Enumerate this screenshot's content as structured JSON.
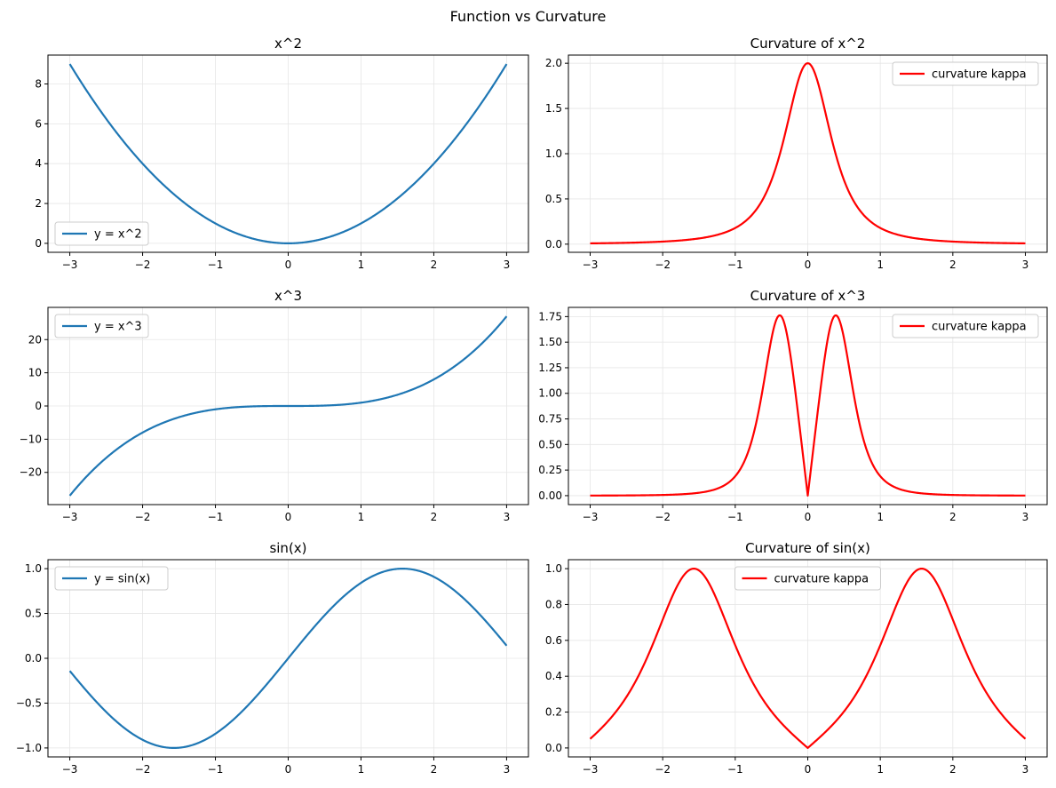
{
  "figure": {
    "title": "Function vs Curvature"
  },
  "colors": {
    "function_line": "#1f77b4",
    "curvature_line": "#ff0000",
    "grid": "#e6e6e6",
    "axes": "#000000"
  },
  "chart_data": [
    {
      "type": "line",
      "title": "x^2",
      "function": "x^2",
      "xlim": [
        -3.3,
        3.3
      ],
      "ylim": [
        -0.45,
        9.45
      ],
      "xticks": [
        -3,
        -2,
        -1,
        0,
        1,
        2,
        3
      ],
      "xtick_labels": [
        "−3",
        "−2",
        "−1",
        "0",
        "1",
        "2",
        "3"
      ],
      "yticks": [
        0,
        2,
        4,
        6,
        8
      ],
      "ytick_labels": [
        "0",
        "2",
        "4",
        "6",
        "8"
      ],
      "grid": true,
      "legend": "lower-left",
      "series": [
        {
          "name": "y = x^2",
          "color": "#1f77b4"
        }
      ],
      "x": [
        -3,
        -2.5,
        -2,
        -1.5,
        -1,
        -0.5,
        0,
        0.5,
        1,
        1.5,
        2,
        2.5,
        3
      ],
      "y": [
        9,
        6.25,
        4,
        2.25,
        1,
        0.25,
        0,
        0.25,
        1,
        2.25,
        4,
        6.25,
        9
      ]
    },
    {
      "type": "line",
      "title": "Curvature of x^2",
      "function": "kappa_x2",
      "xlim": [
        -3.3,
        3.3
      ],
      "ylim": [
        -0.09,
        2.09
      ],
      "xticks": [
        -3,
        -2,
        -1,
        0,
        1,
        2,
        3
      ],
      "xtick_labels": [
        "−3",
        "−2",
        "−1",
        "0",
        "1",
        "2",
        "3"
      ],
      "yticks": [
        0,
        0.5,
        1.0,
        1.5,
        2.0
      ],
      "ytick_labels": [
        "0.0",
        "0.5",
        "1.0",
        "1.5",
        "2.0"
      ],
      "grid": true,
      "legend": "upper-right",
      "series": [
        {
          "name": "curvature kappa",
          "color": "#ff0000"
        }
      ],
      "x": [
        -3,
        -2,
        -1,
        -0.5,
        0,
        0.5,
        1,
        2,
        3
      ],
      "y": [
        0.0119,
        0.0426,
        0.1789,
        0.7071,
        2.0,
        0.7071,
        0.1789,
        0.0426,
        0.0119
      ]
    },
    {
      "type": "line",
      "title": "x^3",
      "function": "x^3",
      "xlim": [
        -3.3,
        3.3
      ],
      "ylim": [
        -29.7,
        29.7
      ],
      "xticks": [
        -3,
        -2,
        -1,
        0,
        1,
        2,
        3
      ],
      "xtick_labels": [
        "−3",
        "−2",
        "−1",
        "0",
        "1",
        "2",
        "3"
      ],
      "yticks": [
        -20,
        -10,
        0,
        10,
        20
      ],
      "ytick_labels": [
        "−20",
        "−10",
        "0",
        "10",
        "20"
      ],
      "grid": true,
      "legend": "upper-left",
      "series": [
        {
          "name": "y = x^3",
          "color": "#1f77b4"
        }
      ],
      "x": [
        -3,
        -2,
        -1,
        0,
        1,
        2,
        3
      ],
      "y": [
        -27,
        -8,
        -1,
        0,
        1,
        8,
        27
      ]
    },
    {
      "type": "line",
      "title": "Curvature of x^3",
      "function": "kappa_x3",
      "xlim": [
        -3.3,
        3.3
      ],
      "ylim": [
        -0.0875,
        1.84
      ],
      "xticks": [
        -3,
        -2,
        -1,
        0,
        1,
        2,
        3
      ],
      "xtick_labels": [
        "−3",
        "−2",
        "−1",
        "0",
        "1",
        "2",
        "3"
      ],
      "yticks": [
        0,
        0.25,
        0.5,
        0.75,
        1.0,
        1.25,
        1.5,
        1.75
      ],
      "ytick_labels": [
        "0.00",
        "0.25",
        "0.50",
        "0.75",
        "1.00",
        "1.25",
        "1.50",
        "1.75"
      ],
      "grid": true,
      "legend": "upper-right",
      "series": [
        {
          "name": "curvature kappa",
          "color": "#ff0000"
        }
      ],
      "x": [
        -3,
        -1,
        -0.39,
        0,
        0.39,
        1,
        3
      ],
      "y": [
        0.0005,
        0.1897,
        1.757,
        0.045,
        1.757,
        0.1897,
        0.0005
      ]
    },
    {
      "type": "line",
      "title": "sin(x)",
      "function": "sin",
      "xlim": [
        -3.3,
        3.3
      ],
      "ylim": [
        -1.1,
        1.1
      ],
      "xticks": [
        -3,
        -2,
        -1,
        0,
        1,
        2,
        3
      ],
      "xtick_labels": [
        "−3",
        "−2",
        "−1",
        "0",
        "1",
        "2",
        "3"
      ],
      "yticks": [
        -1.0,
        -0.5,
        0,
        0.5,
        1.0
      ],
      "ytick_labels": [
        "−1.0",
        "−0.5",
        "0.0",
        "0.5",
        "1.0"
      ],
      "grid": true,
      "legend": "upper-left",
      "series": [
        {
          "name": "y = sin(x)",
          "color": "#1f77b4"
        }
      ],
      "x": [
        -3,
        -1.5708,
        0,
        1.5708,
        3
      ],
      "y": [
        -0.1411,
        -1.0,
        0,
        1.0,
        0.1411
      ]
    },
    {
      "type": "line",
      "title": "Curvature of sin(x)",
      "function": "kappa_sin",
      "xlim": [
        -3.3,
        3.3
      ],
      "ylim": [
        -0.05,
        1.05
      ],
      "xticks": [
        -3,
        -2,
        -1,
        0,
        1,
        2,
        3
      ],
      "xtick_labels": [
        "−3",
        "−2",
        "−1",
        "0",
        "1",
        "2",
        "3"
      ],
      "yticks": [
        0,
        0.2,
        0.4,
        0.6,
        0.8,
        1.0
      ],
      "ytick_labels": [
        "0.0",
        "0.2",
        "0.4",
        "0.6",
        "0.8",
        "1.0"
      ],
      "grid": true,
      "legend": "upper-center",
      "series": [
        {
          "name": "curvature kappa",
          "color": "#ff0000"
        }
      ],
      "x": [
        -3,
        -1.5708,
        0,
        1.5708,
        3
      ],
      "y": [
        0.05,
        1.0,
        0,
        1.0,
        0.05
      ]
    }
  ]
}
